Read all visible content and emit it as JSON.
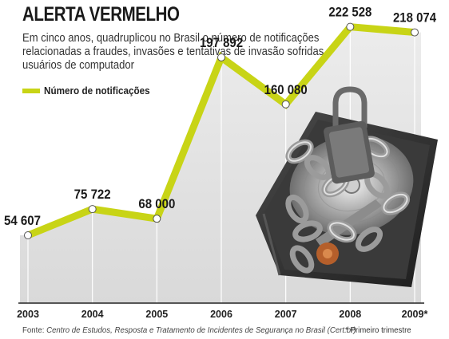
{
  "title": "ALERTA VERMELHO",
  "subtitle": "Em cinco anos, quadruplicou no Brasil o número de notificações relacionadas a fraudes, invasões e tentativas de invasão sofridas por usuários de computador",
  "footer": {
    "source_label": "Fonte:",
    "source_name": "Centro de Estudos, Resposta e Tratamento de Incidentes de Segurança no Brasil (Cert.br)",
    "footnote": "* Primeiro trimestre"
  },
  "colors": {
    "line": "#c8d416",
    "area": "#e6e6e6",
    "text": "#1a1a1a"
  },
  "illustration": "hard-drive-with-chains-and-padlock",
  "chart_data": {
    "type": "line",
    "categories": [
      "2003",
      "2004",
      "2005",
      "2006",
      "2007",
      "2008",
      "2009*"
    ],
    "series": [
      {
        "name": "Número de notificações",
        "values": [
          54607,
          75722,
          68000,
          197892,
          160080,
          222528,
          218074
        ]
      }
    ],
    "data_labels": [
      "54 607",
      "75 722",
      "68 000",
      "197 892",
      "160 080",
      "222 528",
      "218 074"
    ],
    "ylim": [
      0,
      230000
    ],
    "legend": "top-left",
    "grid": true
  }
}
